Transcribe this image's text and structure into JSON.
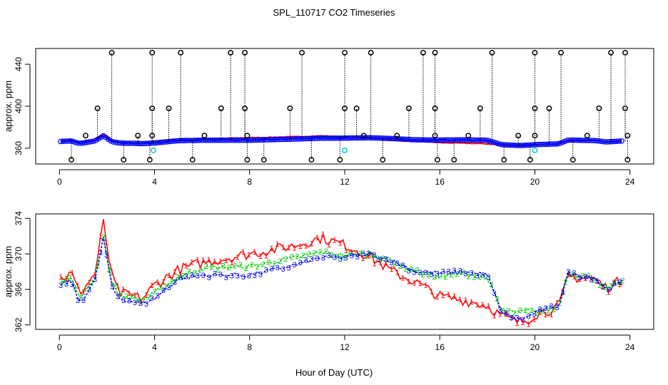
{
  "chart_data": [
    {
      "type": "scatter",
      "title": "SPL_110717  CO2 Timeseries",
      "ylabel": "approx. ppm",
      "xlabel": "",
      "xlim": [
        -1.0,
        25.0
      ],
      "ylim": [
        345,
        455
      ],
      "xticks": [
        0,
        4,
        8,
        12,
        16,
        20,
        24
      ],
      "xtick_labels": [
        "0",
        "4",
        "8",
        "12",
        "16",
        "20",
        "24"
      ],
      "yticks": [
        360,
        400,
        440
      ],
      "ytick_labels": [
        "360",
        "400",
        "440"
      ],
      "colors": {
        "series1": "#ff0000",
        "series2": "#00cc00",
        "series3": "#0000ff",
        "outlier": "#000000",
        "flag": "#00cccc"
      },
      "outliers_high": [
        2.2,
        3.9,
        5.1,
        7.2,
        7.8,
        10.2,
        12.0,
        13.1,
        15.3,
        15.8,
        18.2,
        20.0,
        21.1,
        23.2,
        23.8
      ],
      "outliers_mid": [
        1.6,
        3.9,
        4.6,
        6.8,
        7.8,
        9.7,
        12.0,
        12.5,
        14.7,
        15.8,
        17.7,
        20.0,
        20.6,
        22.7,
        23.8
      ],
      "outliers_low": [
        0.5,
        2.7,
        3.8,
        5.6,
        7.9,
        8.6,
        10.6,
        11.8,
        13.6,
        15.9,
        16.6,
        18.7,
        19.8,
        21.6,
        23.9
      ],
      "outliers_near": [
        1.1,
        3.3,
        3.9,
        6.1,
        7.9,
        12.8,
        14.2,
        15.8,
        17.2,
        19.3,
        20.0,
        22.2,
        23.9
      ],
      "flag_points": [
        [
          3.95,
          358
        ],
        [
          12.0,
          358
        ],
        [
          20.0,
          358
        ]
      ]
    },
    {
      "type": "scatter",
      "title": "",
      "ylabel": "approx. ppm",
      "xlabel": "Hour of Day (UTC)",
      "xlim": [
        -1.0,
        25.0
      ],
      "ylim": [
        361.5,
        374.5
      ],
      "xticks": [
        0,
        4,
        8,
        12,
        16,
        20,
        24
      ],
      "xtick_labels": [
        "0",
        "4",
        "8",
        "12",
        "16",
        "20",
        "24"
      ],
      "yticks": [
        362,
        366,
        370,
        374
      ],
      "ytick_labels": [
        "362",
        "366",
        "370",
        "374"
      ],
      "series": [
        {
          "name": "1",
          "symbol": "1",
          "color": "#ff0000",
          "profile": [
            [
              0.0,
              367.2
            ],
            [
              0.5,
              367.8
            ],
            [
              0.8,
              365.8
            ],
            [
              1.0,
              366.0
            ],
            [
              1.5,
              367.8
            ],
            [
              1.85,
              373.5
            ],
            [
              2.2,
              367.5
            ],
            [
              2.5,
              365.6
            ],
            [
              3.5,
              365.0
            ],
            [
              4.0,
              366.5
            ],
            [
              5.0,
              368.2
            ],
            [
              6.0,
              369.0
            ],
            [
              8.0,
              370.0
            ],
            [
              10.0,
              371.0
            ],
            [
              11.0,
              371.8
            ],
            [
              12.0,
              371.0
            ],
            [
              13.0,
              369.8
            ],
            [
              14.0,
              368.0
            ],
            [
              15.0,
              366.8
            ],
            [
              16.0,
              365.2
            ],
            [
              17.0,
              364.8
            ],
            [
              18.0,
              364.2
            ],
            [
              18.6,
              363.0
            ],
            [
              19.3,
              362.3
            ],
            [
              19.7,
              362.6
            ],
            [
              20.0,
              363.2
            ],
            [
              21.0,
              364.0
            ],
            [
              21.4,
              367.4
            ],
            [
              22.5,
              367.2
            ],
            [
              23.0,
              366.2
            ],
            [
              23.7,
              367.1
            ]
          ]
        },
        {
          "name": "2",
          "symbol": "2",
          "color": "#00cc00",
          "profile": [
            [
              0.0,
              367.0
            ],
            [
              0.5,
              367.3
            ],
            [
              0.8,
              365.2
            ],
            [
              1.0,
              365.4
            ],
            [
              1.5,
              367.4
            ],
            [
              1.85,
              372.0
            ],
            [
              2.2,
              366.8
            ],
            [
              2.5,
              365.4
            ],
            [
              3.5,
              364.8
            ],
            [
              4.0,
              365.6
            ],
            [
              5.0,
              367.4
            ],
            [
              6.0,
              368.4
            ],
            [
              8.0,
              368.6
            ],
            [
              10.0,
              369.6
            ],
            [
              11.0,
              370.2
            ],
            [
              12.0,
              369.8
            ],
            [
              13.0,
              370.1
            ],
            [
              14.0,
              369.2
            ],
            [
              15.0,
              368.0
            ],
            [
              16.0,
              367.4
            ],
            [
              17.0,
              367.8
            ],
            [
              18.0,
              367.4
            ],
            [
              18.6,
              363.6
            ],
            [
              19.3,
              363.4
            ],
            [
              19.7,
              363.6
            ],
            [
              20.0,
              363.5
            ],
            [
              21.0,
              364.0
            ],
            [
              21.4,
              367.8
            ],
            [
              22.5,
              367.3
            ],
            [
              23.0,
              366.0
            ],
            [
              23.7,
              366.9
            ]
          ]
        },
        {
          "name": "3",
          "symbol": "3",
          "color": "#0000ff",
          "profile": [
            [
              0.0,
              366.4
            ],
            [
              0.5,
              367.0
            ],
            [
              0.8,
              364.6
            ],
            [
              1.0,
              365.0
            ],
            [
              1.5,
              367.0
            ],
            [
              1.85,
              371.8
            ],
            [
              2.2,
              366.3
            ],
            [
              2.5,
              365.0
            ],
            [
              3.5,
              364.4
            ],
            [
              4.0,
              365.0
            ],
            [
              5.0,
              367.2
            ],
            [
              6.0,
              367.6
            ],
            [
              8.0,
              367.6
            ],
            [
              10.0,
              368.8
            ],
            [
              11.0,
              369.6
            ],
            [
              12.0,
              369.6
            ],
            [
              13.0,
              370.0
            ],
            [
              14.0,
              369.2
            ],
            [
              15.0,
              368.0
            ],
            [
              16.0,
              367.8
            ],
            [
              17.0,
              368.0
            ],
            [
              18.0,
              367.6
            ],
            [
              18.6,
              363.4
            ],
            [
              19.3,
              362.6
            ],
            [
              19.7,
              362.9
            ],
            [
              20.0,
              363.4
            ],
            [
              21.0,
              364.2
            ],
            [
              21.4,
              367.8
            ],
            [
              22.5,
              367.3
            ],
            [
              23.0,
              366.0
            ],
            [
              23.7,
              366.9
            ]
          ]
        }
      ]
    }
  ],
  "axes": {
    "hour_label": "Hour of Day (UTC)"
  }
}
